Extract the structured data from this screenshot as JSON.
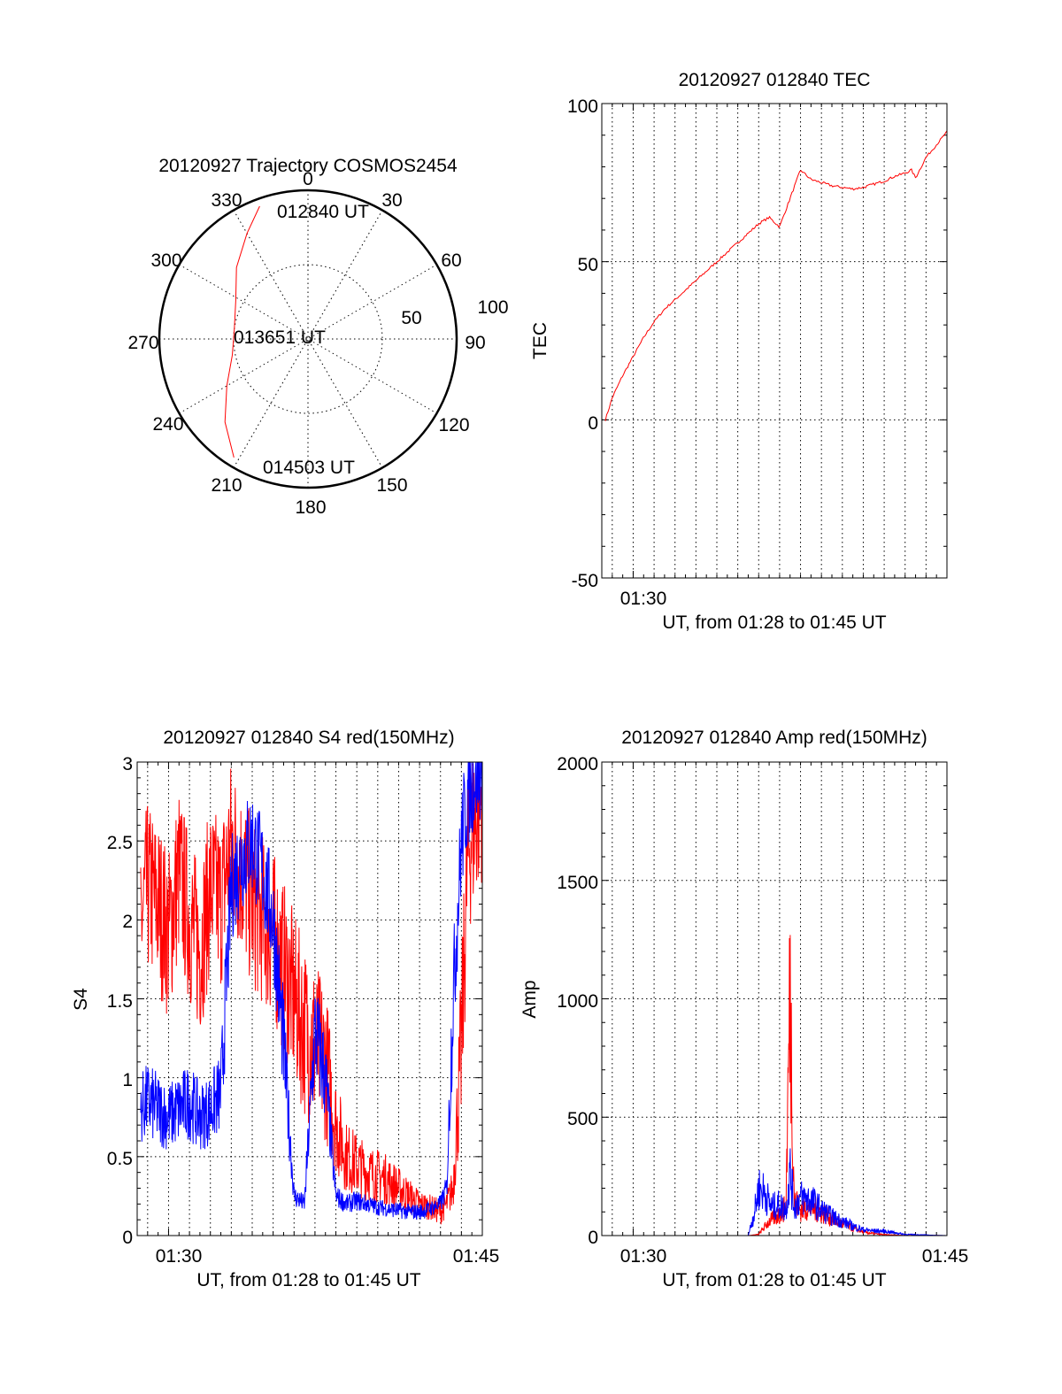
{
  "chart_data": [
    {
      "type": "polar",
      "title": "20120927 Trajectory COSMOS2454",
      "azimuth_labels": [
        "0",
        "30",
        "60",
        "90",
        "120",
        "150",
        "180",
        "210",
        "240",
        "270",
        "300",
        "330"
      ],
      "radius_labels": [
        "50",
        "100"
      ],
      "colors": {
        "track": "#ff0000",
        "axes": "#000000"
      },
      "trajectory": [
        {
          "azimuth": 340,
          "radius": 95
        },
        {
          "azimuth": 330,
          "radius": 82
        },
        {
          "azimuth": 315,
          "radius": 68
        },
        {
          "azimuth": 298,
          "radius": 55
        },
        {
          "azimuth": 278,
          "radius": 50
        },
        {
          "azimuth": 258,
          "radius": 52
        },
        {
          "azimuth": 240,
          "radius": 63
        },
        {
          "azimuth": 225,
          "radius": 79
        },
        {
          "azimuth": 212,
          "radius": 94
        }
      ],
      "annotations": [
        "012840 UT",
        "013651 UT",
        "014503 UT"
      ]
    },
    {
      "type": "line",
      "title": "20120927 012840 TEC",
      "ylabel": "TEC",
      "xlabel": "UT, from 01:28 to 01:45 UT",
      "x_tick_labels": [
        "01:30"
      ],
      "y_tick_labels": [
        "100",
        "50",
        "0",
        "-50"
      ],
      "xlim": [
        88.5,
        105
      ],
      "ylim": [
        -50,
        100
      ],
      "colors": {
        "series": "#ff0000"
      },
      "series": [
        {
          "x": [
            88.67,
            89.0,
            89.5,
            90.0,
            90.5,
            91.0,
            91.5,
            92.0,
            92.5,
            93.0,
            93.5,
            94.0,
            94.5,
            95.0,
            95.5,
            96.0,
            96.5,
            97.0,
            97.5,
            98.0,
            98.5,
            99.0,
            99.5,
            100.0,
            100.5,
            101.0,
            101.5,
            102.0,
            102.5,
            103.0,
            103.3,
            103.5,
            104.0,
            104.5,
            105.0
          ],
          "y": [
            0,
            7,
            14,
            20,
            26,
            31,
            35,
            38,
            41,
            44,
            47,
            50,
            53,
            56,
            59,
            62,
            64,
            61,
            70,
            79,
            76,
            75,
            74,
            73.5,
            73,
            73.5,
            74.5,
            75.5,
            77,
            78,
            79,
            76.5,
            83,
            87,
            91
          ]
        }
      ]
    },
    {
      "type": "line",
      "title": "20120927 012840 S4 red(150MHz)",
      "ylabel": "S4",
      "xlabel": "UT, from 01:28 to 01:45 UT",
      "x_tick_labels": [
        "01:30",
        "01:45"
      ],
      "y_tick_labels": [
        "3",
        "2.5",
        "2",
        "1.5",
        "1",
        "0.5",
        "0"
      ],
      "xlim": [
        88.5,
        105
      ],
      "ylim": [
        0,
        3
      ],
      "colors": {
        "red": "#ff0000",
        "blue": "#0000ff"
      },
      "series": [
        {
          "color": "red",
          "x": [
            88.67,
            89.0,
            89.5,
            90.0,
            90.5,
            91.0,
            91.5,
            92.0,
            92.5,
            93.0,
            93.5,
            94.0,
            94.5,
            95.0,
            95.5,
            96.0,
            96.5,
            97.0,
            97.5,
            98.0,
            98.5,
            99.0,
            99.5,
            100.0,
            100.5,
            101.0,
            101.5,
            102.0,
            102.5,
            103.0,
            103.3,
            103.6,
            104.0,
            104.3,
            104.6,
            105.0
          ],
          "y": [
            2.0,
            2.2,
            2.1,
            1.9,
            2.3,
            2.0,
            1.8,
            2.2,
            2.1,
            2.5,
            2.3,
            2.1,
            2.0,
            1.9,
            1.7,
            1.5,
            1.3,
            1.2,
            1.1,
            0.7,
            0.5,
            0.45,
            0.4,
            0.38,
            0.35,
            0.3,
            0.25,
            0.2,
            0.18,
            0.15,
            0.2,
            0.3,
            1.2,
            2.4,
            2.6,
            2.8
          ]
        },
        {
          "color": "blue",
          "x": [
            88.67,
            89.0,
            89.5,
            90.0,
            90.5,
            91.0,
            91.5,
            92.0,
            92.5,
            93.0,
            93.5,
            94.0,
            94.5,
            95.0,
            95.5,
            96.0,
            96.5,
            97.0,
            97.5,
            98.0,
            98.5,
            99.0,
            99.5,
            100.0,
            100.5,
            101.0,
            101.5,
            102.0,
            102.5,
            103.0,
            103.3,
            103.6,
            104.0,
            104.3,
            104.6,
            105.0
          ],
          "y": [
            0.8,
            0.85,
            0.8,
            0.75,
            0.8,
            0.85,
            0.75,
            0.8,
            0.9,
            2.2,
            2.4,
            2.5,
            2.3,
            2.0,
            1.2,
            0.25,
            0.2,
            1.3,
            1.0,
            0.25,
            0.2,
            0.22,
            0.2,
            0.18,
            0.17,
            0.16,
            0.15,
            0.15,
            0.17,
            0.2,
            0.3,
            1.5,
            2.5,
            2.8,
            2.9,
            3.0
          ]
        }
      ]
    },
    {
      "type": "line",
      "title": "20120927 012840 Amp red(150MHz)",
      "ylabel": "Amp",
      "xlabel": "UT, from 01:28 to 01:45 UT",
      "x_tick_labels": [
        "01:30",
        "01:45"
      ],
      "y_tick_labels": [
        "2000",
        "1500",
        "1000",
        "500",
        "0"
      ],
      "xlim": [
        88.5,
        105
      ],
      "ylim": [
        0,
        2000
      ],
      "colors": {
        "red": "#ff0000",
        "blue": "#0000ff"
      },
      "series": [
        {
          "color": "red",
          "x": [
            88.67,
            90.0,
            92.0,
            94.0,
            95.5,
            96.0,
            96.5,
            97.0,
            97.3,
            97.5,
            97.7,
            98.0,
            98.5,
            99.0,
            99.5,
            100.0,
            100.5,
            101.0,
            101.5,
            102.0,
            102.5,
            103.0,
            105.0
          ],
          "y": [
            0,
            0,
            0,
            0,
            0,
            5,
            60,
            90,
            120,
            1060,
            150,
            110,
            120,
            100,
            70,
            50,
            30,
            15,
            8,
            4,
            2,
            1,
            0
          ]
        },
        {
          "color": "blue",
          "x": [
            88.67,
            90.0,
            92.0,
            94.0,
            95.5,
            95.8,
            96.0,
            96.3,
            96.6,
            97.0,
            97.3,
            97.5,
            97.7,
            98.0,
            98.5,
            99.0,
            99.5,
            100.0,
            100.5,
            101.0,
            101.5,
            102.0,
            102.5,
            103.0,
            105.0
          ],
          "y": [
            0,
            0,
            0,
            0,
            0,
            100,
            200,
            180,
            120,
            130,
            110,
            270,
            120,
            160,
            150,
            110,
            80,
            60,
            40,
            25,
            20,
            18,
            12,
            5,
            0
          ]
        }
      ]
    }
  ]
}
